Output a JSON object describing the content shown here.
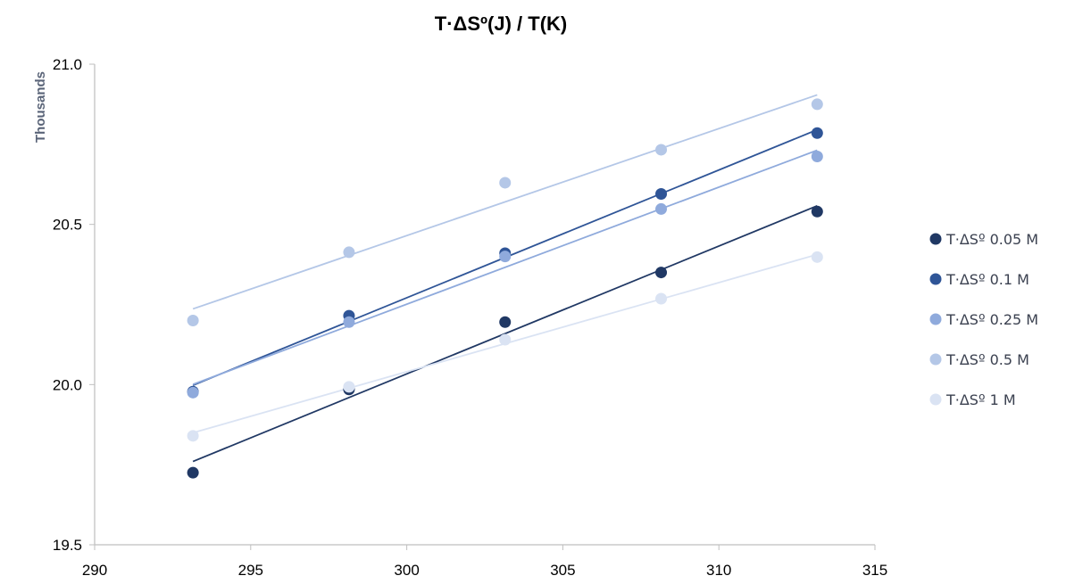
{
  "chart_data": {
    "type": "scatter",
    "title": "T·ΔSº(J) / T(K)",
    "ylabel": "Thousands",
    "xlabel": "",
    "xlim": [
      290,
      315
    ],
    "ylim": [
      19.5,
      21.0
    ],
    "xticks": [
      "290",
      "295",
      "300",
      "305",
      "310",
      "315"
    ],
    "yticks": [
      "19.5",
      "20.0",
      "20.5",
      "21.0"
    ],
    "legend_position": "right",
    "trendlines": true,
    "series": [
      {
        "name": "T·ΔSº 0.05 M",
        "color": "#203864",
        "x": [
          293.15,
          298.15,
          303.15,
          308.15,
          313.15
        ],
        "y": [
          19.725,
          19.985,
          20.195,
          20.35,
          20.54
        ]
      },
      {
        "name": "T·ΔSº 0.1 M",
        "color": "#2f5597",
        "x": [
          293.15,
          298.15,
          303.15,
          308.15,
          313.15
        ],
        "y": [
          19.978,
          20.215,
          20.41,
          20.595,
          20.785
        ]
      },
      {
        "name": "T·ΔSº 0.25 M",
        "color": "#8faadc",
        "x": [
          293.15,
          298.15,
          303.15,
          308.15,
          313.15
        ],
        "y": [
          19.975,
          20.195,
          20.4,
          20.548,
          20.712
        ]
      },
      {
        "name": "T·ΔSº 0.5 M",
        "color": "#b4c7e7",
        "x": [
          293.15,
          298.15,
          303.15,
          308.15,
          313.15
        ],
        "y": [
          20.2,
          20.413,
          20.63,
          20.733,
          20.875
        ]
      },
      {
        "name": "T·ΔSº 1 M",
        "color": "#dae3f3",
        "x": [
          293.15,
          298.15,
          303.15,
          308.15,
          313.15
        ],
        "y": [
          19.84,
          19.993,
          20.14,
          20.268,
          20.398
        ]
      }
    ]
  }
}
